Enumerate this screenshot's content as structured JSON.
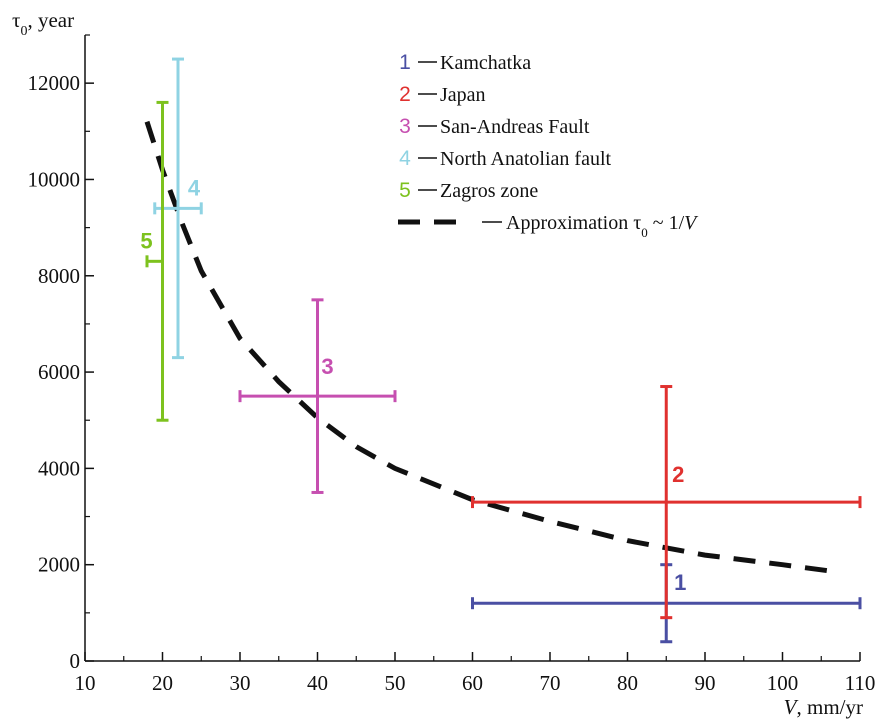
{
  "chart_data": {
    "type": "scatter",
    "title": "",
    "xlabel": "V, mm/yr",
    "xlabel_var": "V",
    "xlabel_unit": ", mm/yr",
    "ylabel": "τ0, year",
    "ylabel_sym": "τ",
    "ylabel_sub": "0",
    "ylabel_unit": ", year",
    "xlim": [
      10,
      110
    ],
    "ylim": [
      0,
      13000
    ],
    "xticks": [
      10,
      20,
      30,
      40,
      50,
      60,
      70,
      80,
      90,
      100,
      110
    ],
    "yticks": [
      0,
      2000,
      4000,
      6000,
      8000,
      10000,
      12000
    ],
    "grid": false,
    "legend_position": "top-right",
    "series": [
      {
        "name": "Kamchatka",
        "legend_number": "1",
        "label": "1",
        "color": "#4a4fa3",
        "x": 85,
        "y": 1200,
        "x_err": [
          60,
          110
        ],
        "y_err": [
          400,
          2000
        ]
      },
      {
        "name": "Japan",
        "legend_number": "2",
        "label": "2",
        "color": "#e0312f",
        "x": 85,
        "y": 3300,
        "x_err": [
          60,
          110
        ],
        "y_err": [
          900,
          5700
        ]
      },
      {
        "name": "San-Andreas Fault",
        "legend_number": "3",
        "label": "3",
        "color": "#c64fb0",
        "x": 40,
        "y": 5500,
        "x_err": [
          30,
          50
        ],
        "y_err": [
          3500,
          7500
        ]
      },
      {
        "name": "North Anatolian fault",
        "legend_number": "4",
        "label": "4",
        "color": "#8fd3e3",
        "x": 22,
        "y": 9400,
        "x_err": [
          19,
          25
        ],
        "y_err": [
          6300,
          12500
        ]
      },
      {
        "name": "Zagros zone",
        "legend_number": "5",
        "label": "5",
        "color": "#7dc21e",
        "x": 20,
        "y": 8300,
        "x_err": [
          18,
          20
        ],
        "y_err": [
          5000,
          11600
        ]
      }
    ],
    "approximation": {
      "name": "Approximation τ0 ~ 1/V",
      "legend_prefix": "Approximation τ",
      "legend_sub": "0",
      "legend_mid": " ~ 1/",
      "legend_var": "V",
      "color": "#111111",
      "style": "dashed",
      "x": [
        18,
        20,
        22.5,
        25,
        30,
        35,
        40,
        45,
        50,
        60,
        70,
        80,
        90,
        100,
        107
      ],
      "y": [
        11200,
        10200,
        9100,
        8100,
        6700,
        5800,
        5050,
        4450,
        4000,
        3350,
        2900,
        2500,
        2200,
        2000,
        1850
      ]
    }
  }
}
